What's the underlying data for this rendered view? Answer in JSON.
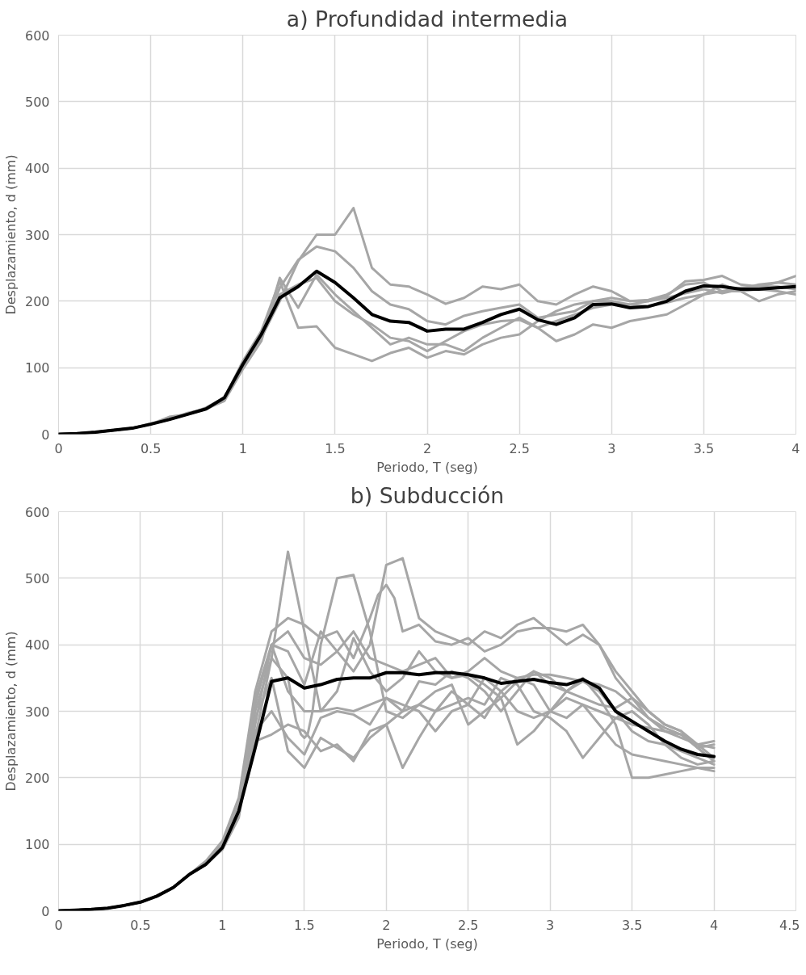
{
  "chart_data": [
    {
      "type": "line",
      "title": "a) Profundidad intermedia",
      "xlabel": "Periodo, T (seg)",
      "ylabel": "Desplazamiento, d (mm)",
      "xlim": [
        0,
        4
      ],
      "xticks": [
        0,
        0.5,
        1,
        1.5,
        2,
        2.5,
        3,
        3.5,
        4
      ],
      "ylim": [
        0,
        600
      ],
      "yticks": [
        0,
        100,
        200,
        300,
        400,
        500,
        600
      ],
      "grid": true,
      "marker": "none",
      "line_style": "solid",
      "x": [
        0,
        0.1,
        0.2,
        0.3,
        0.4,
        0.5,
        0.6,
        0.7,
        0.8,
        0.9,
        1.0,
        1.1,
        1.2,
        1.3,
        1.4,
        1.5,
        1.6,
        1.7,
        1.8,
        1.9,
        2.0,
        2.1,
        2.2,
        2.3,
        2.4,
        2.5,
        2.6,
        2.7,
        2.8,
        2.9,
        3.0,
        3.1,
        3.2,
        3.3,
        3.4,
        3.5,
        3.6,
        3.7,
        3.8,
        3.9,
        4.0
      ],
      "series": [
        {
          "color": "#a6a6a6",
          "values": [
            0,
            1,
            3,
            6,
            9,
            15,
            22,
            30,
            38,
            52,
            100,
            145,
            200,
            260,
            300,
            300,
            340,
            250,
            225,
            222,
            210,
            196,
            205,
            222,
            218,
            225,
            200,
            195,
            210,
            222,
            215,
            200,
            200,
            208,
            230,
            232,
            238,
            225,
            222,
            228,
            238
          ]
        },
        {
          "color": "#a6a6a6",
          "values": [
            0,
            1,
            3,
            6,
            9,
            15,
            24,
            30,
            40,
            55,
            105,
            150,
            220,
            262,
            282,
            275,
            250,
            215,
            195,
            188,
            170,
            165,
            178,
            185,
            190,
            195,
            175,
            180,
            185,
            200,
            205,
            200,
            202,
            210,
            225,
            228,
            215,
            215,
            218,
            215,
            210
          ]
        },
        {
          "color": "#a6a6a6",
          "values": [
            0,
            1,
            3,
            6,
            9,
            16,
            22,
            32,
            38,
            50,
            98,
            140,
            235,
            190,
            240,
            210,
            185,
            160,
            135,
            145,
            135,
            135,
            125,
            145,
            160,
            175,
            160,
            140,
            150,
            165,
            160,
            170,
            175,
            180,
            195,
            210,
            225,
            215,
            200,
            210,
            215
          ]
        },
        {
          "color": "#a6a6a6",
          "values": [
            0,
            1,
            3,
            6,
            9,
            15,
            26,
            30,
            38,
            54,
            110,
            155,
            230,
            160,
            162,
            130,
            120,
            110,
            122,
            130,
            115,
            125,
            120,
            135,
            145,
            150,
            170,
            185,
            195,
            200,
            200,
            195,
            200,
            205,
            212,
            218,
            212,
            218,
            225,
            228,
            225
          ]
        },
        {
          "color": "#a6a6a6",
          "values": [
            0,
            1,
            3,
            6,
            9,
            15,
            22,
            30,
            38,
            52,
            100,
            145,
            210,
            225,
            235,
            200,
            180,
            165,
            145,
            140,
            125,
            140,
            155,
            165,
            170,
            172,
            160,
            170,
            180,
            190,
            195,
            195,
            192,
            198,
            205,
            210,
            215,
            220,
            222,
            222,
            218
          ]
        },
        {
          "color": "#000000",
          "values": [
            0,
            1,
            3,
            6,
            9,
            15,
            22,
            30,
            38,
            55,
            105,
            150,
            205,
            222,
            245,
            228,
            205,
            180,
            170,
            168,
            155,
            158,
            158,
            168,
            180,
            188,
            172,
            165,
            175,
            195,
            196,
            190,
            192,
            200,
            215,
            223,
            222,
            218,
            218,
            220,
            222
          ]
        }
      ]
    },
    {
      "type": "line",
      "title": "b) Subducción",
      "xlabel": "Periodo, T (seg)",
      "ylabel": "Desplazamiento, d (mm)",
      "xlim": [
        0,
        4.5
      ],
      "xticks": [
        0,
        0.5,
        1,
        1.5,
        2,
        2.5,
        3,
        3.5,
        4,
        4.5
      ],
      "ylim": [
        0,
        600
      ],
      "yticks": [
        0,
        100,
        200,
        300,
        400,
        500,
        600
      ],
      "grid": true,
      "marker": "none",
      "line_style": "solid",
      "x": [
        0,
        0.1,
        0.2,
        0.3,
        0.4,
        0.5,
        0.6,
        0.7,
        0.8,
        0.9,
        1.0,
        1.1,
        1.2,
        1.3,
        1.4,
        1.5,
        1.6,
        1.7,
        1.8,
        1.9,
        2.0,
        2.1,
        2.2,
        2.3,
        2.4,
        2.5,
        2.6,
        2.7,
        2.8,
        2.9,
        3.0,
        3.1,
        3.2,
        3.3,
        3.4,
        3.5,
        3.6,
        3.7,
        3.8,
        3.9,
        4.0
      ],
      "series": [
        {
          "color": "#a6a6a6",
          "values": [
            0,
            1,
            2,
            4,
            8,
            13,
            22,
            35,
            55,
            70,
            95,
            150,
            260,
            380,
            540,
            420,
            300,
            330,
            410,
            360,
            330,
            350,
            390,
            360,
            350,
            355,
            340,
            320,
            345,
            360,
            340,
            330,
            345,
            330,
            300,
            270,
            255,
            250,
            240,
            230,
            220
          ]
        },
        {
          "color": "#a6a6a6",
          "x": [
            0,
            0.1,
            0.2,
            0.3,
            0.4,
            0.5,
            0.6,
            0.7,
            0.8,
            0.9,
            1.0,
            1.1,
            1.2,
            1.3,
            1.4,
            1.45,
            1.48,
            1.5,
            1.52,
            1.55,
            1.6,
            1.7,
            1.8,
            1.9,
            2.0,
            2.1,
            2.2,
            2.3,
            2.4,
            2.5,
            2.6,
            2.7,
            2.8,
            2.9,
            3.0,
            3.1,
            3.2,
            3.3,
            3.4,
            3.5,
            3.6,
            3.7,
            3.8,
            3.9,
            4.0
          ],
          "values": [
            0,
            1,
            2,
            4,
            8,
            13,
            22,
            35,
            55,
            72,
            100,
            160,
            300,
            380,
            350,
            285,
            265,
            260,
            265,
            300,
            400,
            500,
            505,
            420,
            300,
            290,
            310,
            300,
            330,
            310,
            290,
            330,
            350,
            340,
            300,
            290,
            310,
            300,
            290,
            280,
            275,
            270,
            265,
            245,
            250
          ]
        },
        {
          "color": "#a6a6a6",
          "values": [
            0,
            1,
            2,
            4,
            8,
            13,
            22,
            35,
            55,
            70,
            92,
            140,
            280,
            400,
            390,
            340,
            420,
            390,
            360,
            400,
            520,
            530,
            440,
            420,
            410,
            400,
            420,
            410,
            430,
            440,
            420,
            400,
            415,
            400,
            360,
            330,
            300,
            280,
            270,
            245,
            225
          ]
        },
        {
          "color": "#a6a6a6",
          "x": [
            0,
            0.1,
            0.2,
            0.3,
            0.4,
            0.5,
            0.6,
            0.7,
            0.8,
            0.9,
            1.0,
            1.1,
            1.2,
            1.3,
            1.4,
            1.5,
            1.6,
            1.7,
            1.8,
            1.9,
            1.95,
            2.0,
            2.05,
            2.1,
            2.2,
            2.3,
            2.4,
            2.5,
            2.6,
            2.7,
            2.8,
            2.9,
            3.0,
            3.1,
            3.2,
            3.3,
            3.4,
            3.5,
            3.6,
            3.7,
            3.8,
            3.9,
            4.0
          ],
          "values": [
            0,
            1,
            2,
            4,
            8,
            13,
            22,
            35,
            55,
            75,
            105,
            170,
            330,
            420,
            440,
            430,
            410,
            420,
            380,
            440,
            475,
            490,
            470,
            420,
            430,
            405,
            400,
            410,
            390,
            400,
            420,
            425,
            425,
            420,
            430,
            400,
            350,
            320,
            290,
            270,
            260,
            250,
            255
          ]
        },
        {
          "color": "#a6a6a6",
          "values": [
            0,
            1,
            2,
            4,
            8,
            13,
            22,
            35,
            55,
            70,
            95,
            150,
            290,
            350,
            240,
            215,
            260,
            245,
            230,
            260,
            280,
            300,
            310,
            330,
            340,
            280,
            300,
            320,
            250,
            270,
            300,
            330,
            350,
            320,
            280,
            200,
            200,
            205,
            210,
            215,
            215
          ]
        },
        {
          "color": "#a6a6a6",
          "values": [
            0,
            1,
            2,
            4,
            8,
            13,
            22,
            35,
            55,
            70,
            95,
            150,
            255,
            265,
            280,
            270,
            240,
            250,
            225,
            270,
            280,
            215,
            260,
            300,
            310,
            320,
            310,
            350,
            340,
            300,
            290,
            270,
            230,
            260,
            290,
            300,
            280,
            250,
            230,
            220,
            225
          ]
        },
        {
          "color": "#a6a6a6",
          "values": [
            0,
            1,
            2,
            4,
            8,
            13,
            22,
            35,
            55,
            70,
            95,
            150,
            270,
            300,
            260,
            235,
            290,
            300,
            295,
            280,
            320,
            310,
            300,
            270,
            300,
            310,
            350,
            330,
            300,
            290,
            300,
            320,
            310,
            280,
            250,
            235,
            230,
            225,
            220,
            215,
            210
          ]
        },
        {
          "color": "#a6a6a6",
          "values": [
            0,
            1,
            2,
            4,
            8,
            13,
            22,
            35,
            55,
            70,
            98,
            160,
            310,
            400,
            330,
            300,
            300,
            305,
            300,
            310,
            320,
            300,
            345,
            340,
            360,
            350,
            330,
            300,
            330,
            360,
            350,
            330,
            320,
            310,
            305,
            320,
            300,
            280,
            270,
            250,
            230
          ]
        },
        {
          "color": "#a6a6a6",
          "values": [
            0,
            1,
            2,
            4,
            8,
            13,
            22,
            35,
            55,
            70,
            95,
            155,
            320,
            400,
            420,
            380,
            370,
            390,
            420,
            380,
            370,
            360,
            370,
            380,
            350,
            360,
            380,
            360,
            350,
            355,
            355,
            350,
            345,
            340,
            330,
            310,
            290,
            275,
            265,
            250,
            245
          ]
        },
        {
          "color": "#000000",
          "values": [
            0,
            1,
            2,
            4,
            8,
            13,
            22,
            35,
            55,
            70,
            95,
            150,
            245,
            345,
            350,
            335,
            340,
            348,
            350,
            350,
            358,
            358,
            355,
            358,
            358,
            355,
            350,
            342,
            345,
            348,
            343,
            340,
            348,
            335,
            300,
            285,
            270,
            255,
            243,
            235,
            232
          ]
        }
      ]
    }
  ]
}
